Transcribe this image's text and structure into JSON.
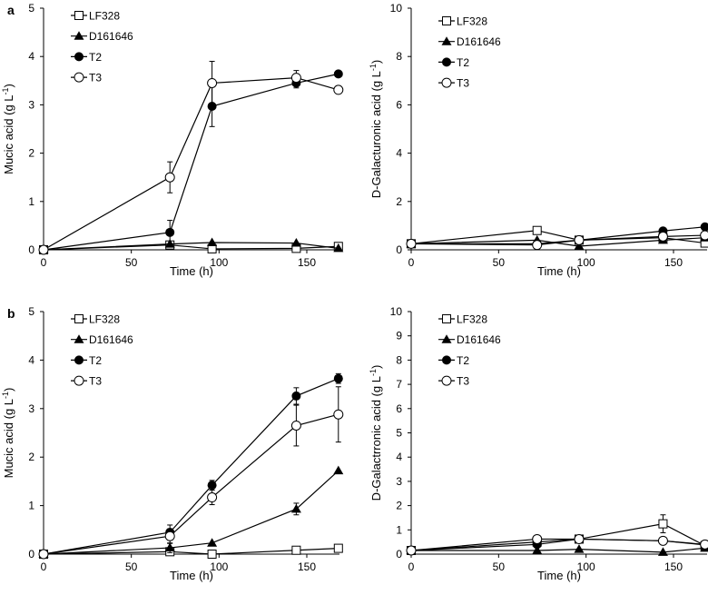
{
  "chart_data": [
    {
      "type": "line",
      "panel_label": "a",
      "xlabel": "Time (h)",
      "ylabel": "Mucic acid (g L-1)",
      "ylabel_main": "Mucic acid (g L",
      "ylabel_sup": "-1",
      "ylabel_end": ")",
      "xlim": [
        0,
        170
      ],
      "ylim": [
        0,
        5
      ],
      "xticks": [
        0,
        50,
        100,
        150
      ],
      "yticks": [
        0,
        1,
        2,
        3,
        4,
        5
      ],
      "legend_position": "top-left",
      "x": [
        0,
        72,
        96,
        144,
        168
      ],
      "series": [
        {
          "name": "LF328",
          "marker": "open-square",
          "values": [
            0,
            0.1,
            0.02,
            0.03,
            0.07
          ],
          "errors": [
            0,
            0,
            0,
            0,
            0
          ]
        },
        {
          "name": "D161646",
          "marker": "filled-triangle",
          "values": [
            0,
            0.12,
            0.15,
            0.14,
            0.03
          ],
          "errors": [
            0,
            0,
            0,
            0,
            0
          ]
        },
        {
          "name": "T2",
          "marker": "filled-circle",
          "values": [
            0,
            0.36,
            2.97,
            3.45,
            3.64
          ],
          "errors": [
            0,
            0.25,
            0.42,
            0.1,
            0
          ]
        },
        {
          "name": "T3",
          "marker": "open-circle",
          "values": [
            0,
            1.5,
            3.45,
            3.56,
            3.31
          ],
          "errors": [
            0,
            0.32,
            0.45,
            0.15,
            0
          ]
        }
      ]
    },
    {
      "type": "line",
      "panel_label": "",
      "xlabel": "Time (h)",
      "ylabel": "D-Galacturonic acid (g L-1)",
      "ylabel_main": "D-Galacturonic acid (g L",
      "ylabel_sup": "-1",
      "ylabel_end": ")",
      "xlim": [
        0,
        170
      ],
      "ylim": [
        0,
        10
      ],
      "xticks": [
        0,
        50,
        100,
        150
      ],
      "yticks": [
        0,
        2,
        4,
        6,
        8,
        10
      ],
      "legend_position": "top-left",
      "x": [
        0,
        72,
        96,
        144,
        168
      ],
      "series": [
        {
          "name": "LF328",
          "marker": "open-square",
          "values": [
            0.25,
            0.8,
            0.4,
            0.5,
            0.28
          ],
          "errors": [
            0,
            0,
            0,
            0,
            0
          ]
        },
        {
          "name": "D161646",
          "marker": "filled-triangle",
          "values": [
            0.25,
            0.4,
            0.15,
            0.4,
            0.5
          ],
          "errors": [
            0,
            0,
            0,
            0,
            0
          ]
        },
        {
          "name": "T2",
          "marker": "filled-circle",
          "values": [
            0.25,
            0.25,
            0.4,
            0.78,
            0.95
          ],
          "errors": [
            0,
            0,
            0,
            0,
            0
          ]
        },
        {
          "name": "T3",
          "marker": "open-circle",
          "values": [
            0.25,
            0.2,
            0.4,
            0.55,
            0.6
          ],
          "errors": [
            0,
            0,
            0,
            0,
            0
          ]
        }
      ]
    },
    {
      "type": "line",
      "panel_label": "b",
      "xlabel": "Time (h)",
      "ylabel": "Mucic acid (g L-1)",
      "ylabel_main": "Mucic acid (g L",
      "ylabel_sup": "-1",
      "ylabel_end": ")",
      "xlim": [
        0,
        170
      ],
      "ylim": [
        0,
        5
      ],
      "xticks": [
        0,
        50,
        100,
        150
      ],
      "yticks": [
        0,
        1,
        2,
        3,
        4,
        5
      ],
      "legend_position": "top-left",
      "x": [
        0,
        72,
        96,
        144,
        168
      ],
      "series": [
        {
          "name": "LF328",
          "marker": "open-square",
          "values": [
            0,
            0.05,
            0,
            0.08,
            0.12
          ],
          "errors": [
            0,
            0,
            0,
            0,
            0
          ]
        },
        {
          "name": "D161646",
          "marker": "filled-triangle",
          "values": [
            0,
            0.13,
            0.23,
            0.93,
            1.72
          ],
          "errors": [
            0,
            0.1,
            0,
            0.12,
            0
          ]
        },
        {
          "name": "T2",
          "marker": "filled-circle",
          "values": [
            0,
            0.45,
            1.42,
            3.26,
            3.62
          ],
          "errors": [
            0,
            0.15,
            0.1,
            0.17,
            0.1
          ]
        },
        {
          "name": "T3",
          "marker": "open-circle",
          "values": [
            0,
            0.37,
            1.17,
            2.65,
            2.88
          ],
          "errors": [
            0,
            0.15,
            0.15,
            0.42,
            0.57
          ]
        }
      ]
    },
    {
      "type": "line",
      "panel_label": "",
      "xlabel": "Time (h)",
      "ylabel": "D-Galactrronic acid (g L-1)",
      "ylabel_main": "D-Galactrronic acid (g L",
      "ylabel_sup": "-1",
      "ylabel_end": ")",
      "xlim": [
        0,
        170
      ],
      "ylim": [
        0,
        10
      ],
      "xticks": [
        0,
        50,
        100,
        150
      ],
      "yticks": [
        0,
        1,
        2,
        3,
        4,
        5,
        6,
        7,
        8,
        9,
        10
      ],
      "legend_position": "top-left",
      "x": [
        0,
        72,
        96,
        144,
        168
      ],
      "series": [
        {
          "name": "LF328",
          "marker": "open-square",
          "values": [
            0.15,
            0.5,
            0.62,
            1.25,
            0.35
          ],
          "errors": [
            0,
            0,
            0,
            0.37,
            0
          ]
        },
        {
          "name": "D161646",
          "marker": "filled-triangle",
          "values": [
            0.15,
            0.15,
            0.2,
            0.08,
            0.25
          ],
          "errors": [
            0,
            0,
            0,
            0,
            0
          ]
        },
        {
          "name": "T2",
          "marker": "filled-circle",
          "values": [
            0.15,
            0.4,
            0.62,
            0.55,
            0.38
          ],
          "errors": [
            0,
            0,
            0,
            0,
            0
          ]
        },
        {
          "name": "T3",
          "marker": "open-circle",
          "values": [
            0.15,
            0.62,
            0.62,
            0.55,
            0.4
          ],
          "errors": [
            0,
            0,
            0,
            0,
            0
          ]
        }
      ]
    }
  ]
}
